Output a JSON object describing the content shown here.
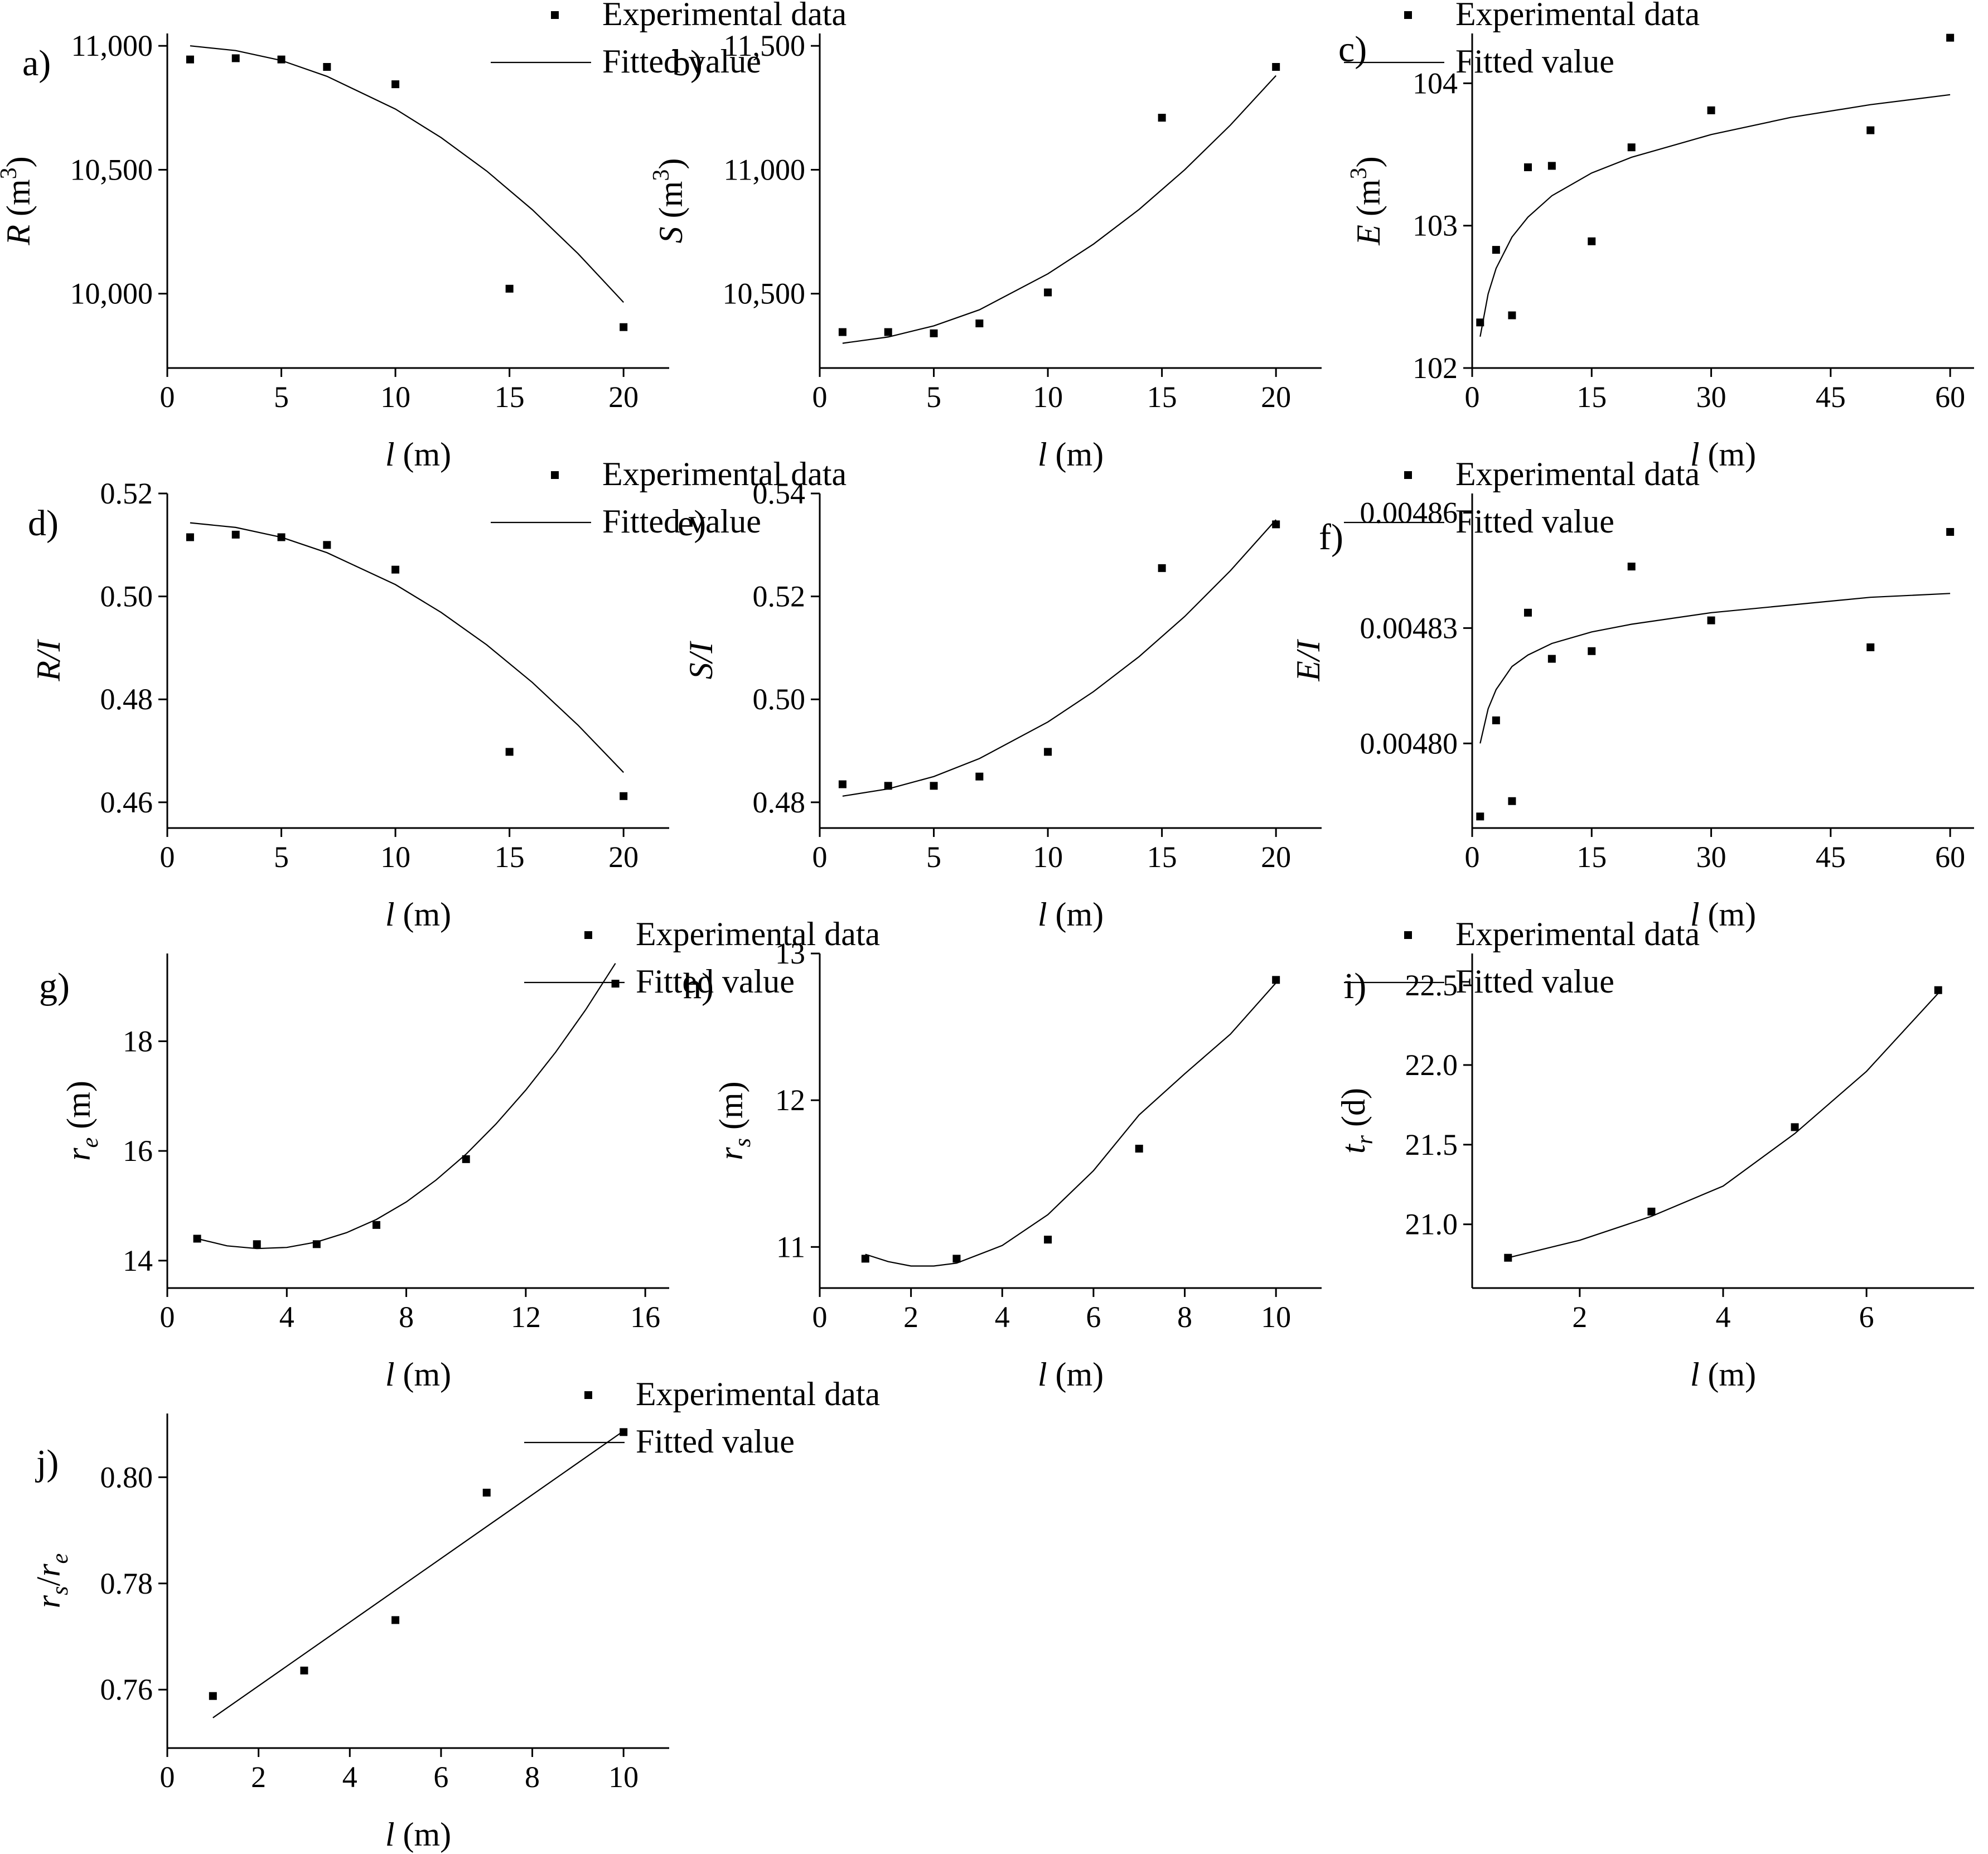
{
  "chart_data": [
    {
      "id": "a",
      "type": "scatter",
      "panel_label": "a)",
      "xlabel": {
        "var": "l",
        "unit": " (m)"
      },
      "ylabel": {
        "var": "R",
        "unit": " (m",
        "sup": "3",
        "close": ")"
      },
      "xlim": [
        0,
        22
      ],
      "ylim": [
        9700,
        11050
      ],
      "xticks": [
        {
          "v": 0,
          "t": "0"
        },
        {
          "v": 5,
          "t": "5"
        },
        {
          "v": 10,
          "t": "10"
        },
        {
          "v": 15,
          "t": "15"
        },
        {
          "v": 20,
          "t": "20"
        }
      ],
      "yticks": [
        {
          "v": 10000,
          "t": "10,000"
        },
        {
          "v": 10500,
          "t": "10,500"
        },
        {
          "v": 11000,
          "t": "11,000"
        }
      ],
      "series": [
        {
          "name": "Experimental data",
          "kind": "points",
          "x": [
            1,
            3,
            5,
            7,
            10,
            15,
            20
          ],
          "y": [
            10945,
            10950,
            10945,
            10915,
            10845,
            10020,
            9865
          ]
        },
        {
          "name": "Fitted value",
          "kind": "line",
          "x": [
            1,
            3,
            5,
            7,
            10,
            12,
            14,
            16,
            18,
            20
          ],
          "y": [
            11000,
            10981,
            10941,
            10877,
            10745,
            10630,
            10495,
            10339,
            10162,
            9965
          ]
        }
      ]
    },
    {
      "id": "b",
      "type": "scatter",
      "panel_label": "b)",
      "xlabel": {
        "var": "l",
        "unit": " (m)"
      },
      "ylabel": {
        "var": "S",
        "unit": " (m",
        "sup": "3",
        "close": ")"
      },
      "xlim": [
        0,
        22
      ],
      "ylim": [
        10200,
        11550
      ],
      "xticks": [
        {
          "v": 0,
          "t": "0"
        },
        {
          "v": 5,
          "t": "5"
        },
        {
          "v": 10,
          "t": "10"
        },
        {
          "v": 15,
          "t": "15"
        },
        {
          "v": 20,
          "t": "20"
        }
      ],
      "yticks": [
        {
          "v": 10500,
          "t": "10,500"
        },
        {
          "v": 11000,
          "t": "11,000"
        },
        {
          "v": 11500,
          "t": "11,500"
        }
      ],
      "series": [
        {
          "name": "Experimental data",
          "kind": "points",
          "x": [
            1,
            3,
            5,
            7,
            10,
            15,
            20
          ],
          "y": [
            10345,
            10345,
            10340,
            10380,
            10505,
            11210,
            11415
          ]
        },
        {
          "name": "Fitted value",
          "kind": "line",
          "x": [
            1,
            3,
            5,
            7,
            10,
            12,
            14,
            16,
            18,
            20
          ],
          "y": [
            10300,
            10325,
            10370,
            10435,
            10580,
            10700,
            10840,
            11000,
            11180,
            11380
          ]
        }
      ]
    },
    {
      "id": "c",
      "type": "scatter",
      "panel_label": "c)",
      "xlabel": {
        "var": "l",
        "unit": " (m)"
      },
      "ylabel": {
        "var": "E",
        "unit": " (m",
        "sup": "3",
        "close": ")"
      },
      "xlim": [
        0,
        63
      ],
      "ylim": [
        102,
        104.35
      ],
      "xticks": [
        {
          "v": 0,
          "t": "0"
        },
        {
          "v": 15,
          "t": "15"
        },
        {
          "v": 30,
          "t": "30"
        },
        {
          "v": 45,
          "t": "45"
        },
        {
          "v": 60,
          "t": "60"
        }
      ],
      "yticks": [
        {
          "v": 102,
          "t": "102"
        },
        {
          "v": 103,
          "t": "103"
        },
        {
          "v": 104,
          "t": "104"
        }
      ],
      "series": [
        {
          "name": "Experimental data",
          "kind": "points",
          "x": [
            1,
            3,
            5,
            7,
            10,
            15,
            20,
            30,
            50,
            60
          ],
          "y": [
            102.32,
            102.83,
            102.37,
            103.41,
            103.42,
            102.89,
            103.55,
            103.81,
            103.67,
            104.32
          ]
        },
        {
          "name": "Fitted value",
          "kind": "line",
          "x": [
            1,
            2,
            3,
            5,
            7,
            10,
            15,
            20,
            30,
            40,
            50,
            60
          ],
          "y": [
            102.22,
            102.52,
            102.7,
            102.92,
            103.06,
            103.21,
            103.37,
            103.48,
            103.64,
            103.76,
            103.85,
            103.92
          ]
        }
      ]
    },
    {
      "id": "d",
      "type": "scatter",
      "panel_label": "d)",
      "xlabel": {
        "var": "l",
        "unit": " (m)"
      },
      "ylabel": {
        "var": "R/I",
        "unit": "",
        "sup": "",
        "close": ""
      },
      "xlim": [
        0,
        22
      ],
      "ylim": [
        0.455,
        0.52
      ],
      "xticks": [
        {
          "v": 0,
          "t": "0"
        },
        {
          "v": 5,
          "t": "5"
        },
        {
          "v": 10,
          "t": "10"
        },
        {
          "v": 15,
          "t": "15"
        },
        {
          "v": 20,
          "t": "20"
        }
      ],
      "yticks": [
        {
          "v": 0.46,
          "t": "0.46"
        },
        {
          "v": 0.48,
          "t": "0.48"
        },
        {
          "v": 0.5,
          "t": "0.50"
        },
        {
          "v": 0.52,
          "t": "0.52"
        }
      ],
      "series": [
        {
          "name": "Experimental data",
          "kind": "points",
          "x": [
            1,
            3,
            5,
            7,
            10,
            15,
            20
          ],
          "y": [
            0.5115,
            0.512,
            0.5115,
            0.51,
            0.5052,
            0.4698,
            0.4612
          ]
        },
        {
          "name": "Fitted value",
          "kind": "line",
          "x": [
            1,
            3,
            5,
            7,
            10,
            12,
            14,
            16,
            18,
            20
          ],
          "y": [
            0.5143,
            0.5134,
            0.5115,
            0.5085,
            0.5023,
            0.4969,
            0.4906,
            0.4833,
            0.475,
            0.4658
          ]
        }
      ]
    },
    {
      "id": "e",
      "type": "scatter",
      "panel_label": "e)",
      "xlabel": {
        "var": "l",
        "unit": " (m)"
      },
      "ylabel": {
        "var": "S/I",
        "unit": "",
        "sup": "",
        "close": ""
      },
      "xlim": [
        0,
        22
      ],
      "ylim": [
        0.475,
        0.54
      ],
      "xticks": [
        {
          "v": 0,
          "t": "0"
        },
        {
          "v": 5,
          "t": "5"
        },
        {
          "v": 10,
          "t": "10"
        },
        {
          "v": 15,
          "t": "15"
        },
        {
          "v": 20,
          "t": "20"
        }
      ],
      "yticks": [
        {
          "v": 0.48,
          "t": "0.48"
        },
        {
          "v": 0.5,
          "t": "0.50"
        },
        {
          "v": 0.52,
          "t": "0.52"
        },
        {
          "v": 0.54,
          "t": "0.54"
        }
      ],
      "series": [
        {
          "name": "Experimental data",
          "kind": "points",
          "x": [
            1,
            3,
            5,
            7,
            10,
            15,
            20
          ],
          "y": [
            0.4835,
            0.4832,
            0.4832,
            0.485,
            0.4898,
            0.5255,
            0.534
          ]
        },
        {
          "name": "Fitted value",
          "kind": "line",
          "x": [
            1,
            3,
            5,
            7,
            10,
            12,
            14,
            16,
            18,
            20
          ],
          "y": [
            0.4812,
            0.4826,
            0.485,
            0.4885,
            0.4956,
            0.5015,
            0.5083,
            0.5161,
            0.525,
            0.5349
          ]
        }
      ]
    },
    {
      "id": "f",
      "type": "scatter",
      "panel_label": "f)",
      "xlabel": {
        "var": "l",
        "unit": " (m)"
      },
      "ylabel": {
        "var": "E/I",
        "unit": "",
        "sup": "",
        "close": ""
      },
      "xlim": [
        0,
        63
      ],
      "ylim": [
        0.004778,
        0.004865
      ],
      "xticks": [
        {
          "v": 0,
          "t": "0"
        },
        {
          "v": 15,
          "t": "15"
        },
        {
          "v": 30,
          "t": "30"
        },
        {
          "v": 45,
          "t": "45"
        },
        {
          "v": 60,
          "t": "60"
        }
      ],
      "yticks": [
        {
          "v": 0.0048,
          "t": "0.00480"
        },
        {
          "v": 0.00483,
          "t": "0.00483"
        },
        {
          "v": 0.00486,
          "t": "0.00486"
        }
      ],
      "series": [
        {
          "name": "Experimental data",
          "kind": "points",
          "x": [
            1,
            3,
            5,
            7,
            10,
            15,
            20,
            30,
            50,
            60
          ],
          "y": [
            0.004781,
            0.004806,
            0.004785,
            0.004834,
            0.004822,
            0.004824,
            0.004846,
            0.004832,
            0.004825,
            0.004855
          ]
        },
        {
          "name": "Fitted value",
          "kind": "line",
          "x": [
            1,
            2,
            3,
            5,
            7,
            10,
            15,
            20,
            30,
            40,
            50,
            60
          ],
          "y": [
            0.0048,
            0.004809,
            0.004814,
            0.00482,
            0.004823,
            0.004826,
            0.004829,
            0.004831,
            0.004834,
            0.004836,
            0.004838,
            0.004839
          ]
        }
      ]
    },
    {
      "id": "g",
      "type": "scatter",
      "panel_label": "g)",
      "xlabel": {
        "var": "l",
        "unit": " (m)"
      },
      "ylabel": {
        "var": "r",
        "sub": "e",
        "unit": " (m)"
      },
      "xlim": [
        0,
        16.8
      ],
      "ylim": [
        13.5,
        19.6
      ],
      "xticks": [
        {
          "v": 0,
          "t": "0"
        },
        {
          "v": 4,
          "t": "4"
        },
        {
          "v": 8,
          "t": "8"
        },
        {
          "v": 12,
          "t": "12"
        },
        {
          "v": 16,
          "t": "16"
        }
      ],
      "yticks": [
        {
          "v": 14,
          "t": "14"
        },
        {
          "v": 16,
          "t": "16"
        },
        {
          "v": 18,
          "t": "18"
        }
      ],
      "series": [
        {
          "name": "Experimental data",
          "kind": "points",
          "x": [
            1,
            3,
            5,
            7,
            10,
            15
          ],
          "y": [
            14.4,
            14.3,
            14.3,
            14.65,
            15.85,
            19.05
          ]
        },
        {
          "name": "Fitted value",
          "kind": "line",
          "x": [
            1,
            2,
            3,
            4,
            5,
            6,
            7,
            8,
            9,
            10,
            11,
            12,
            13,
            14,
            15
          ],
          "y": [
            14.4,
            14.27,
            14.22,
            14.24,
            14.34,
            14.51,
            14.75,
            15.07,
            15.47,
            15.94,
            16.49,
            17.11,
            17.8,
            18.57,
            19.42
          ]
        }
      ]
    },
    {
      "id": "h",
      "type": "scatter",
      "panel_label": "h)",
      "xlabel": {
        "var": "l",
        "unit": " (m)"
      },
      "ylabel": {
        "var": "r",
        "sub": "s",
        "unit": " (m)"
      },
      "xlim": [
        0,
        11
      ],
      "ylim": [
        10.72,
        13.0
      ],
      "xticks": [
        {
          "v": 0,
          "t": "0"
        },
        {
          "v": 2,
          "t": "2"
        },
        {
          "v": 4,
          "t": "4"
        },
        {
          "v": 6,
          "t": "6"
        },
        {
          "v": 8,
          "t": "8"
        },
        {
          "v": 10,
          "t": "10"
        }
      ],
      "yticks": [
        {
          "v": 11,
          "t": "11"
        },
        {
          "v": 12,
          "t": "12"
        },
        {
          "v": 13,
          "t": "13"
        }
      ],
      "series": [
        {
          "name": "Experimental data",
          "kind": "points",
          "x": [
            1,
            3,
            5,
            7,
            10
          ],
          "y": [
            10.92,
            10.92,
            11.05,
            11.67,
            12.82
          ]
        },
        {
          "name": "Fitted value",
          "kind": "line",
          "x": [
            1,
            1.5,
            2,
            2.5,
            3,
            4,
            5,
            6,
            7,
            8,
            9,
            10
          ],
          "y": [
            10.95,
            10.9,
            10.87,
            10.87,
            10.89,
            11.01,
            11.22,
            11.52,
            11.9,
            12.18,
            12.45,
            12.8
          ]
        }
      ]
    },
    {
      "id": "i",
      "type": "scatter",
      "panel_label": "i)",
      "xlabel": {
        "var": "l",
        "unit": " (m)"
      },
      "ylabel": {
        "var": "t",
        "sub": "r",
        "unit": " (d)"
      },
      "xlim": [
        0.5,
        7.5
      ],
      "ylim": [
        20.6,
        22.7
      ],
      "xticks": [
        {
          "v": 2,
          "t": "2"
        },
        {
          "v": 4,
          "t": "4"
        },
        {
          "v": 6,
          "t": "6"
        }
      ],
      "yticks": [
        {
          "v": 21.0,
          "t": "21.0"
        },
        {
          "v": 21.5,
          "t": "21.5"
        },
        {
          "v": 22.0,
          "t": "22.0"
        },
        {
          "v": 22.5,
          "t": "22.5"
        }
      ],
      "series": [
        {
          "name": "Experimental data",
          "kind": "points",
          "x": [
            1,
            3,
            5,
            7
          ],
          "y": [
            20.79,
            21.08,
            21.61,
            22.47
          ]
        },
        {
          "name": "Fitted value",
          "kind": "line",
          "x": [
            1,
            2,
            3,
            4,
            5,
            6,
            7
          ],
          "y": [
            20.79,
            20.9,
            21.05,
            21.24,
            21.57,
            21.96,
            22.45
          ]
        }
      ]
    },
    {
      "id": "j",
      "type": "scatter",
      "panel_label": "j)",
      "xlabel": {
        "var": "l",
        "unit": " (m)"
      },
      "ylabel": {
        "var": "r",
        "sub": "s",
        "slash": "/",
        "var2": "r",
        "sub2": "e"
      },
      "xlim": [
        0,
        11
      ],
      "ylim": [
        0.749,
        0.812
      ],
      "xticks": [
        {
          "v": 0,
          "t": "0"
        },
        {
          "v": 2,
          "t": "2"
        },
        {
          "v": 4,
          "t": "4"
        },
        {
          "v": 6,
          "t": "6"
        },
        {
          "v": 8,
          "t": "8"
        },
        {
          "v": 10,
          "t": "10"
        }
      ],
      "yticks": [
        {
          "v": 0.76,
          "t": "0.76"
        },
        {
          "v": 0.78,
          "t": "0.78"
        },
        {
          "v": 0.8,
          "t": "0.80"
        }
      ],
      "series": [
        {
          "name": "Experimental data",
          "kind": "points",
          "x": [
            1,
            3,
            5,
            7,
            10
          ],
          "y": [
            0.7588,
            0.7636,
            0.7731,
            0.7971,
            0.8085
          ]
        },
        {
          "name": "Fitted value",
          "kind": "line",
          "x": [
            1,
            10
          ],
          "y": [
            0.7547,
            0.8087
          ]
        }
      ]
    }
  ]
}
